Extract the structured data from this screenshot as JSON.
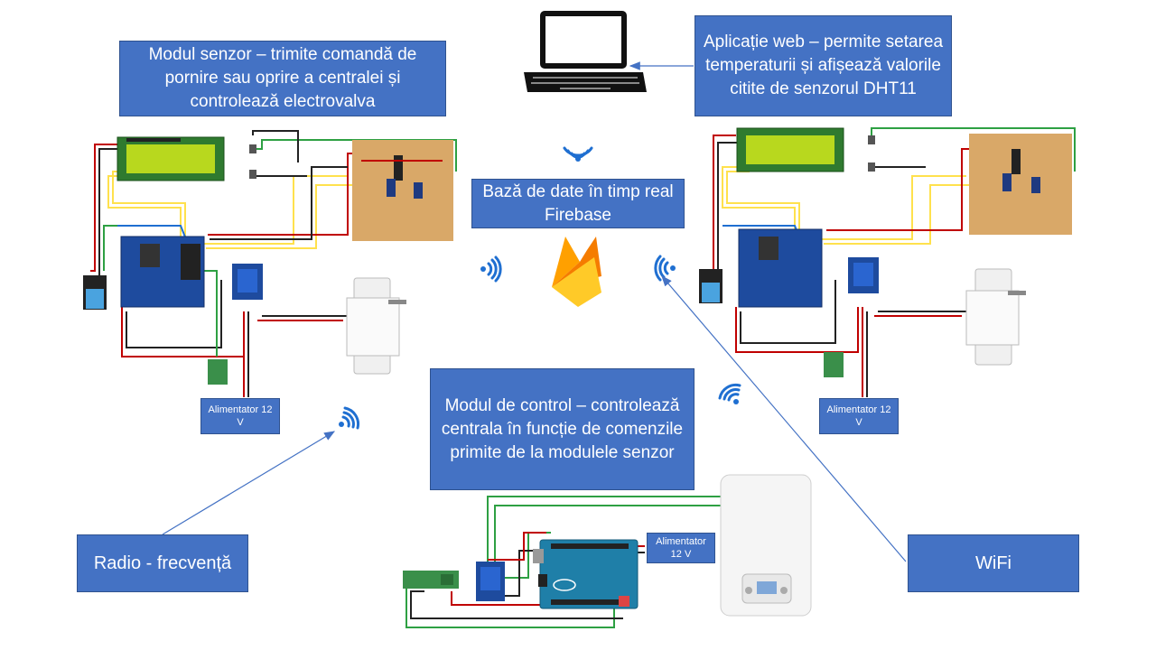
{
  "labels": {
    "sensor_module": "Modul senzor – trimite comandă de pornire sau oprire a centralei și controlează electrovalva",
    "web_app": "Aplicație web – permite setarea temperaturii și afișează valorile citite de senzorul DHT11",
    "database": "Bază de date în timp real Firebase",
    "control_module": "Modul de control – controlează centrala în funcție de comenzile primite de la modulele senzor",
    "radio": "Radio - frecvență",
    "wifi": "WiFi",
    "psu_left": "Alimentator 12 V",
    "psu_right": "Alimentator 12 V",
    "psu_control": "Alimentator 12 V"
  },
  "colors": {
    "box_fill": "#4472c4",
    "box_border": "#2f528f",
    "arrow": "#4472c4",
    "firebase_yellow": "#ffca28",
    "firebase_orange": "#f57c00",
    "board_blue": "#1e4b9e",
    "wire_red": "#c00000",
    "wire_green": "#2ea043",
    "wire_yellow": "#ffe14d",
    "wire_black": "#222222"
  },
  "icons": [
    "laptop-icon",
    "firebase-icon",
    "wireless-signal-icon",
    "lcd-display-icon",
    "dht11-sensor-icon",
    "relay-icon",
    "water-valve-icon",
    "boiler-icon",
    "arduino-board-icon",
    "radio-receiver-icon"
  ]
}
